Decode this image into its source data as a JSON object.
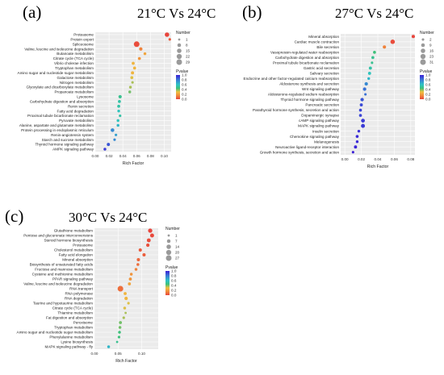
{
  "figure": {
    "panels": [
      {
        "letter": "(a)",
        "title": "21°C Vs 24°C"
      },
      {
        "letter": "(b)",
        "title": "27°C Vs 24°C"
      },
      {
        "letter": "(c)",
        "title": "30°C Vs 24°C"
      }
    ]
  },
  "colors": {
    "plot_bg": "#ebebeb",
    "gradient": [
      "#e8453c",
      "#f08a3c",
      "#f0c040",
      "#3ec07a",
      "#2ec4c4",
      "#3a7bd5",
      "#3b1fd6"
    ]
  },
  "chart_data": [
    {
      "type": "scatter",
      "panel": "(a)",
      "title": "21°C Vs 24°C",
      "xlabel": "Rich Factor",
      "ylabel": "",
      "xlim": [
        0.0,
        0.11
      ],
      "xticks": [
        "0.00",
        "0.02",
        "0.04",
        "0.06",
        "0.08",
        "0.10"
      ],
      "xtick_values": [
        0.0,
        0.02,
        0.04,
        0.06,
        0.08,
        0.1
      ],
      "legend": {
        "size_title": "Number",
        "size_entries": [
          "1",
          "8",
          "15",
          "22",
          "29"
        ],
        "size_values": [
          1,
          8,
          15,
          22,
          29
        ],
        "color_title": "Pvalue",
        "color_ticks": [
          "1.0",
          "0.8",
          "0.6",
          "0.4",
          "0.2",
          "0.0"
        ],
        "color_tick_values": [
          1.0,
          0.8,
          0.6,
          0.4,
          0.2,
          0.0
        ]
      },
      "points": [
        {
          "term": "Proteasome",
          "rich": 0.104,
          "number": 15,
          "pvalue": 0.0
        },
        {
          "term": "Protein export",
          "rich": 0.108,
          "number": 2,
          "pvalue": 0.05
        },
        {
          "term": "Spliceosome",
          "rich": 0.06,
          "number": 29,
          "pvalue": 0.02
        },
        {
          "term": "Valine, leucine and isoleucine degradation",
          "rich": 0.066,
          "number": 6,
          "pvalue": 0.15
        },
        {
          "term": "Butanoate metabolism",
          "rich": 0.072,
          "number": 3,
          "pvalue": 0.25
        },
        {
          "term": "Citrate cycle (TCA cycle)",
          "rich": 0.064,
          "number": 4,
          "pvalue": 0.2
        },
        {
          "term": "Vibrio cholerae infection",
          "rich": 0.055,
          "number": 4,
          "pvalue": 0.3
        },
        {
          "term": "Tryptophan metabolism",
          "rich": 0.057,
          "number": 4,
          "pvalue": 0.3
        },
        {
          "term": "Amino sugar and nucleotide sugar metabolism",
          "rich": 0.054,
          "number": 5,
          "pvalue": 0.3
        },
        {
          "term": "Galactose metabolism",
          "rich": 0.053,
          "number": 4,
          "pvalue": 0.35
        },
        {
          "term": "Nitrogen metabolism",
          "rich": 0.054,
          "number": 2,
          "pvalue": 0.4
        },
        {
          "term": "Glyoxylate and dicarboxylate metabolism",
          "rich": 0.051,
          "number": 3,
          "pvalue": 0.4
        },
        {
          "term": "Propanoate metabolism",
          "rich": 0.05,
          "number": 3,
          "pvalue": 0.45
        },
        {
          "term": "Lysosome",
          "rich": 0.036,
          "number": 6,
          "pvalue": 0.55
        },
        {
          "term": "Carbohydrate digestion and absorption",
          "rich": 0.035,
          "number": 4,
          "pvalue": 0.6
        },
        {
          "term": "Renin secretion",
          "rich": 0.034,
          "number": 4,
          "pvalue": 0.6
        },
        {
          "term": "Fatty acid degradation",
          "rich": 0.034,
          "number": 3,
          "pvalue": 0.65
        },
        {
          "term": "Proximal tubule bicarbonate reclamation",
          "rich": 0.036,
          "number": 2,
          "pvalue": 0.6
        },
        {
          "term": "Pyruvate metabolism",
          "rich": 0.033,
          "number": 3,
          "pvalue": 0.65
        },
        {
          "term": "Alanine, aspartate and glutamate metabolism",
          "rich": 0.033,
          "number": 3,
          "pvalue": 0.7
        },
        {
          "term": "Protein processing in endoplasmic reticulum",
          "rich": 0.025,
          "number": 8,
          "pvalue": 0.8
        },
        {
          "term": "Renin-angiotensin system",
          "rich": 0.03,
          "number": 2,
          "pvalue": 0.75
        },
        {
          "term": "Starch and sucrose metabolism",
          "rich": 0.028,
          "number": 2,
          "pvalue": 0.8
        },
        {
          "term": "Thyroid hormone signaling pathway",
          "rich": 0.019,
          "number": 5,
          "pvalue": 0.9
        },
        {
          "term": "AMPK signaling pathway",
          "rich": 0.014,
          "number": 3,
          "pvalue": 0.95
        }
      ]
    },
    {
      "type": "scatter",
      "panel": "(b)",
      "title": "27°C Vs 24°C",
      "xlabel": "Rich Factor",
      "ylabel": "",
      "xlim": [
        -0.005,
        0.085
      ],
      "xticks": [
        "0.00",
        "0.02",
        "0.04",
        "0.06",
        "0.08"
      ],
      "xtick_values": [
        0.0,
        0.02,
        0.04,
        0.06,
        0.08
      ],
      "legend": {
        "size_title": "Number",
        "size_entries": [
          "2",
          "9",
          "16",
          "23",
          "31"
        ],
        "size_values": [
          2,
          9,
          16,
          23,
          31
        ],
        "color_title": "Pvalue",
        "color_ticks": [
          "1.0",
          "0.8",
          "0.6",
          "0.4",
          "0.2",
          "0.0"
        ],
        "color_tick_values": [
          1.0,
          0.8,
          0.6,
          0.4,
          0.2,
          0.0
        ]
      },
      "points": [
        {
          "term": "Mineral absorption",
          "rich": 0.083,
          "number": 6,
          "pvalue": 0.0
        },
        {
          "term": "Cardiac muscle contraction",
          "rich": 0.058,
          "number": 16,
          "pvalue": 0.02
        },
        {
          "term": "Bile secretion",
          "rich": 0.048,
          "number": 6,
          "pvalue": 0.15
        },
        {
          "term": "Vasopressin-regulated water reabsorption",
          "rich": 0.036,
          "number": 4,
          "pvalue": 0.5
        },
        {
          "term": "Carbohydrate digestion and absorption",
          "rich": 0.034,
          "number": 4,
          "pvalue": 0.55
        },
        {
          "term": "Proximal tubule bicarbonate reclamation",
          "rich": 0.033,
          "number": 2,
          "pvalue": 0.55
        },
        {
          "term": "Gastric acid secretion",
          "rich": 0.031,
          "number": 5,
          "pvalue": 0.6
        },
        {
          "term": "Salivary secretion",
          "rich": 0.03,
          "number": 5,
          "pvalue": 0.65
        },
        {
          "term": "Endocrine and other factor-regulated calcium reabsorption",
          "rich": 0.029,
          "number": 3,
          "pvalue": 0.7
        },
        {
          "term": "Aldosterone synthesis and secretion",
          "rich": 0.026,
          "number": 7,
          "pvalue": 0.8
        },
        {
          "term": "Wnt signaling pathway",
          "rich": 0.024,
          "number": 7,
          "pvalue": 0.85
        },
        {
          "term": "Aldosterone-regulated sodium reabsorption",
          "rich": 0.025,
          "number": 2,
          "pvalue": 0.85
        },
        {
          "term": "Thyroid hormone signaling pathway",
          "rich": 0.021,
          "number": 7,
          "pvalue": 0.9
        },
        {
          "term": "Pancreatic secretion",
          "rich": 0.02,
          "number": 5,
          "pvalue": 0.92
        },
        {
          "term": "Parathyroid hormone synthesis, secretion and action",
          "rich": 0.019,
          "number": 4,
          "pvalue": 0.93
        },
        {
          "term": "Dopaminergic synapse",
          "rich": 0.019,
          "number": 4,
          "pvalue": 0.93
        },
        {
          "term": "cAMP signaling pathway",
          "rich": 0.022,
          "number": 10,
          "pvalue": 0.95
        },
        {
          "term": "MAPK signaling pathway",
          "rich": 0.022,
          "number": 11,
          "pvalue": 0.95
        },
        {
          "term": "Insulin secretion",
          "rich": 0.017,
          "number": 3,
          "pvalue": 0.97
        },
        {
          "term": "Chemokine signaling pathway",
          "rich": 0.015,
          "number": 4,
          "pvalue": 0.98
        },
        {
          "term": "Melanogenesis",
          "rich": 0.015,
          "number": 3,
          "pvalue": 0.98
        },
        {
          "term": "Neuroactive ligand-receptor interaction",
          "rich": 0.013,
          "number": 5,
          "pvalue": 0.99
        },
        {
          "term": "Growth hormone synthesis, secretion and action",
          "rich": 0.01,
          "number": 2,
          "pvalue": 1.0
        }
      ]
    },
    {
      "type": "scatter",
      "panel": "(c)",
      "title": "30°C Vs 24°C",
      "xlabel": "Rich Factor",
      "ylabel": "",
      "xlim": [
        0.0,
        0.135
      ],
      "xticks": [
        "0.00",
        "0.05",
        "0.10"
      ],
      "xtick_values": [
        0.0,
        0.05,
        0.1
      ],
      "legend": {
        "size_title": "Number",
        "size_entries": [
          "1",
          "7",
          "14",
          "20",
          "27"
        ],
        "size_values": [
          1,
          7,
          14,
          20,
          27
        ],
        "color_title": "Pvalue",
        "color_ticks": [
          "1.0",
          "0.8",
          "0.6",
          "0.4",
          "0.2",
          "0.0"
        ],
        "color_tick_values": [
          1.0,
          0.8,
          0.6,
          0.4,
          0.2,
          0.0
        ]
      },
      "points": [
        {
          "term": "Glutathione metabolism",
          "rich": 0.118,
          "number": 12,
          "pvalue": 0.0
        },
        {
          "term": "Pentose and glucuronate interconversions",
          "rich": 0.122,
          "number": 10,
          "pvalue": 0.01
        },
        {
          "term": "Steroid hormone biosynthesis",
          "rich": 0.115,
          "number": 9,
          "pvalue": 0.02
        },
        {
          "term": "Proteasome",
          "rich": 0.113,
          "number": 6,
          "pvalue": 0.03
        },
        {
          "term": "Cholesterol metabolism",
          "rich": 0.097,
          "number": 5,
          "pvalue": 0.05
        },
        {
          "term": "Fatty acid elongation",
          "rich": 0.105,
          "number": 5,
          "pvalue": 0.06
        },
        {
          "term": "Mineral absorption",
          "rich": 0.093,
          "number": 5,
          "pvalue": 0.08
        },
        {
          "term": "Biosynthesis of unsaturated fatty acids",
          "rich": 0.092,
          "number": 3,
          "pvalue": 0.1
        },
        {
          "term": "Fructose and mannose metabolism",
          "rich": 0.088,
          "number": 3,
          "pvalue": 0.15
        },
        {
          "term": "Cysteine and methionine metabolism",
          "rich": 0.078,
          "number": 3,
          "pvalue": 0.2
        },
        {
          "term": "PPAR signaling pathway",
          "rich": 0.076,
          "number": 4,
          "pvalue": 0.2
        },
        {
          "term": "Valine, leucine and isoleucine degradation",
          "rich": 0.074,
          "number": 4,
          "pvalue": 0.25
        },
        {
          "term": "RNA transport",
          "rich": 0.055,
          "number": 27,
          "pvalue": 0.1
        },
        {
          "term": "RNA polymerase",
          "rich": 0.065,
          "number": 4,
          "pvalue": 0.3
        },
        {
          "term": "RNA degradation",
          "rich": 0.067,
          "number": 6,
          "pvalue": 0.3
        },
        {
          "term": "Taurine and hypotaurine metabolism",
          "rich": 0.072,
          "number": 2,
          "pvalue": 0.35
        },
        {
          "term": "Citrate cycle (TCA cycle)",
          "rich": 0.064,
          "number": 3,
          "pvalue": 0.35
        },
        {
          "term": "Thiamine metabolism",
          "rich": 0.066,
          "number": 1,
          "pvalue": 0.4
        },
        {
          "term": "Fat digestion and absorption",
          "rich": 0.062,
          "number": 2,
          "pvalue": 0.4
        },
        {
          "term": "Peroxisome",
          "rich": 0.055,
          "number": 4,
          "pvalue": 0.45
        },
        {
          "term": "Tryptophan metabolism",
          "rich": 0.054,
          "number": 3,
          "pvalue": 0.45
        },
        {
          "term": "Amino sugar and nucleotide sugar metabolism",
          "rich": 0.053,
          "number": 3,
          "pvalue": 0.5
        },
        {
          "term": "Phenylalanine metabolism",
          "rich": 0.052,
          "number": 2,
          "pvalue": 0.5
        },
        {
          "term": "Lysine biosynthesis",
          "rich": 0.048,
          "number": 1,
          "pvalue": 0.55
        },
        {
          "term": "MAPK signaling pathway - fly",
          "rich": 0.03,
          "number": 3,
          "pvalue": 0.7
        }
      ]
    }
  ]
}
